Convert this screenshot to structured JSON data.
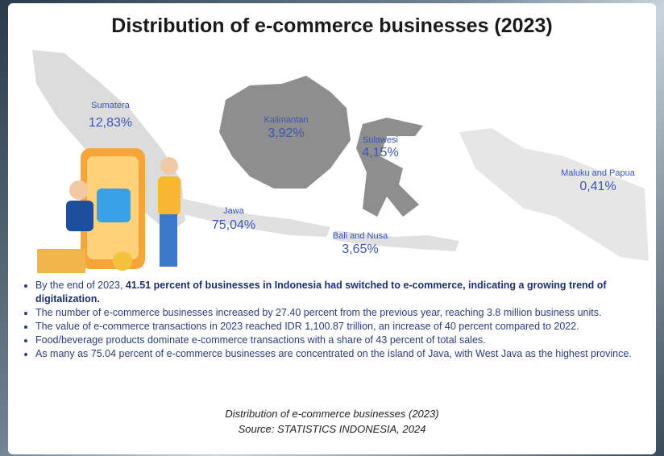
{
  "header": {
    "title": "Distribution of e-commerce businesses (2023)"
  },
  "map": {
    "regions": [
      {
        "name": "Sumatera",
        "share": "12,83%"
      },
      {
        "name": "Kalimantan",
        "share": "3,92%"
      },
      {
        "name": "Sulawesi",
        "share": "4,15%"
      },
      {
        "name": "Maluku and Papua",
        "share": "0,41%"
      },
      {
        "name": "Jawa",
        "share": "75,04%"
      },
      {
        "name": "Bali and Nusa",
        "share": "3,65%"
      }
    ]
  },
  "bullets": [
    {
      "text": "By the end of 2023,",
      "bold": "41.51 percent of businesses in Indonesia had switched to e-commerce, indicating a growing trend of digitalization."
    },
    "The number of e-commerce businesses increased by 27.40 percent from the previous year, reaching 3.8 million business units.",
    "The value of e-commerce transactions in 2023 reached IDR 1,100.87 trillion, an increase of 40 percent compared to 2022.",
    "Food/beverage products dominate e-commerce transactions with a share of 43 percent of total sales.",
    "As many as 75.04 percent of e-commerce businesses are concentrated on the island of Java, with West Java as the highest province."
  ],
  "caption": {
    "line1": "Distribution of e-commerce businesses (2023)",
    "line2": "Source: STATISTICS INDONESIA, 2024"
  }
}
